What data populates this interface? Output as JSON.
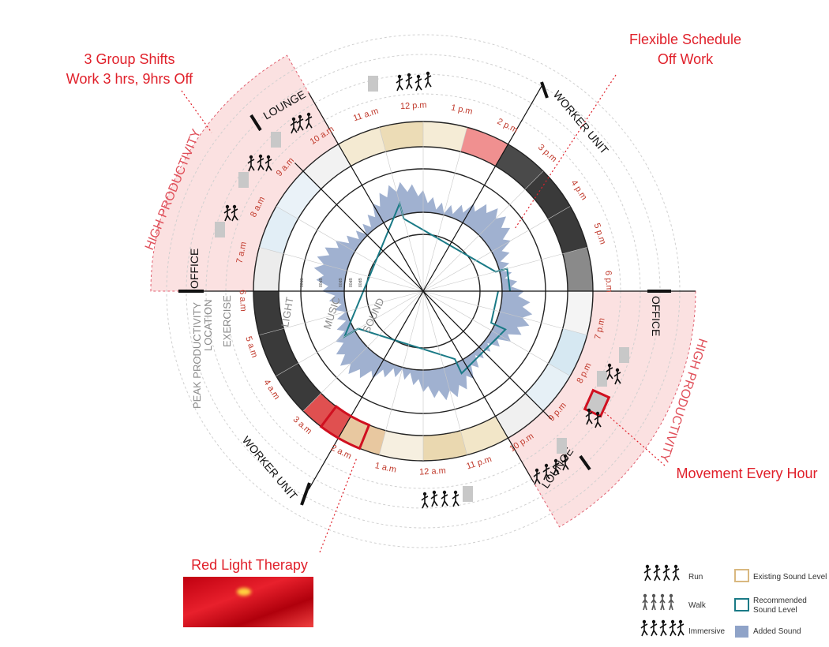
{
  "callouts": {
    "shifts_line1": "3 Group Shifts",
    "shifts_line2": "Work 3 hrs, 9hrs Off",
    "flex_line1": "Flexible Schedule",
    "flex_line2": "Off Work",
    "movement": "Movement Every Hour",
    "red_light": "Red Light Therapy"
  },
  "zones": {
    "lounge_top": "LOUNGE",
    "worker_unit_top": "WORKER UNIT",
    "office_left": "OFFICE",
    "office_right": "OFFICE",
    "worker_unit_bottom": "WORKER UNIT",
    "lounge_bottom": "LOUNGE"
  },
  "high_productivity": {
    "left": "HIGH PRODUCTIVITY",
    "right": "HIGH PRODUCTIVITY"
  },
  "ring_labels": {
    "light": "LIGHT",
    "music": "MUSIC",
    "sound": "SOUND",
    "exercise": "EXERCISE",
    "location": "LOCATION",
    "peak": "PEAK PRODUCTIVITY",
    "tick": "80dB"
  },
  "hours": [
    "6 p.m",
    "7 p.m",
    "8 p.m",
    "9 p.m",
    "10 p.m",
    "11 p.m",
    "12 a.m",
    "1 a.m",
    "2 a.m",
    "3 a.m",
    "4 a.m",
    "5 a.m",
    "6 a.m",
    "7 a.m",
    "8 a.m",
    "9 a.m",
    "10 a.m",
    "11 a.m",
    "12 p.m",
    "1 p.m",
    "2 p.m",
    "3 p.m",
    "4 p.m",
    "5 p.m"
  ],
  "legend": {
    "run": "Run",
    "walk": "Walk",
    "immersive": "Immersive",
    "existing": "Existing Sound Level",
    "recommended_line1": "Recommended",
    "recommended_line2": "Sound Level",
    "added": "Added Sound"
  },
  "colors": {
    "accent_red": "#e0202a",
    "light_dark": "#3a3a3a",
    "light_warm": "#ead8b0",
    "light_cool": "#d6e8f2",
    "added_sound": "#8fa3c8",
    "recommended": "#1a7a86",
    "highlight_pink": "#fbe1e1"
  }
}
